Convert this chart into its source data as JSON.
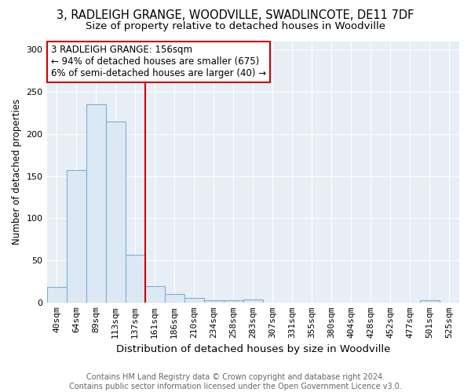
{
  "title": "3, RADLEIGH GRANGE, WOODVILLE, SWADLINCOTE, DE11 7DF",
  "subtitle": "Size of property relative to detached houses in Woodville",
  "xlabel": "Distribution of detached houses by size in Woodville",
  "ylabel": "Number of detached properties",
  "bin_labels": [
    "40sqm",
    "64sqm",
    "89sqm",
    "113sqm",
    "137sqm",
    "161sqm",
    "186sqm",
    "210sqm",
    "234sqm",
    "258sqm",
    "283sqm",
    "307sqm",
    "331sqm",
    "355sqm",
    "380sqm",
    "404sqm",
    "428sqm",
    "452sqm",
    "477sqm",
    "501sqm",
    "525sqm"
  ],
  "bar_values": [
    18,
    157,
    235,
    215,
    57,
    19,
    10,
    5,
    3,
    3,
    4,
    0,
    0,
    0,
    0,
    0,
    0,
    0,
    0,
    3,
    0
  ],
  "bar_color": "#dce9f5",
  "bar_edge_color": "#7bafd4",
  "property_line_x": 4.5,
  "property_line_label": "3 RADLEIGH GRANGE: 156sqm",
  "annotation_line1": "← 94% of detached houses are smaller (675)",
  "annotation_line2": "6% of semi-detached houses are larger (40) →",
  "annotation_box_color": "#ffffff",
  "annotation_box_edge": "#cc0000",
  "vline_color": "#cc0000",
  "ylim": [
    0,
    310
  ],
  "yticks": [
    0,
    50,
    100,
    150,
    200,
    250,
    300
  ],
  "ax_facecolor": "#e8eef5",
  "background_color": "#ffffff",
  "grid_color": "#ffffff",
  "footer": "Contains HM Land Registry data © Crown copyright and database right 2024.\nContains public sector information licensed under the Open Government Licence v3.0.",
  "title_fontsize": 10.5,
  "subtitle_fontsize": 9.5,
  "xlabel_fontsize": 9.5,
  "ylabel_fontsize": 8.5,
  "tick_fontsize": 8,
  "annotation_fontsize": 8.5,
  "footer_fontsize": 7
}
